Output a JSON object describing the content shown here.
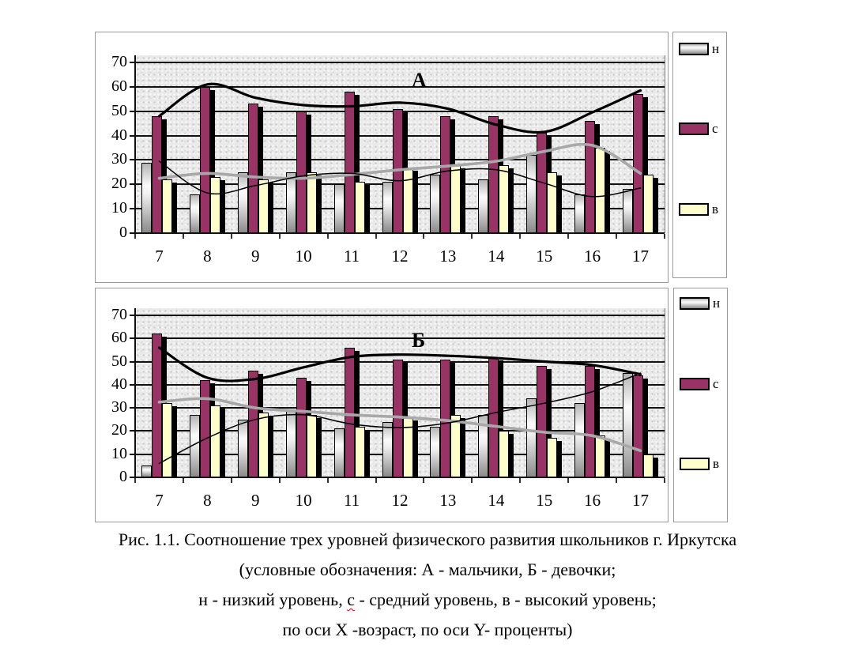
{
  "figure": {
    "type_note": "grouped bar charts with smoothed trend lines, Excel style"
  },
  "chart_data": [
    {
      "type": "bar",
      "label": "А",
      "categories": [
        7,
        8,
        9,
        10,
        11,
        12,
        13,
        14,
        15,
        16,
        17
      ],
      "series": [
        {
          "name": "н",
          "values": [
            29,
            16,
            25,
            25,
            20,
            21,
            24,
            22,
            32,
            16,
            18
          ]
        },
        {
          "name": "с",
          "values": [
            48,
            60,
            53,
            50,
            58,
            51,
            48,
            48,
            41,
            46,
            57
          ]
        },
        {
          "name": "в",
          "values": [
            22,
            23,
            22,
            25,
            21,
            27,
            28,
            28,
            25,
            35,
            24
          ]
        }
      ],
      "trend_lines": [
        {
          "series": "в",
          "style": "thick-gray",
          "values": [
            22.5,
            24.5,
            23,
            22.5,
            24,
            26,
            27.5,
            29.5,
            33.5,
            36,
            24.5
          ]
        },
        {
          "series": "с",
          "style": "thick-black",
          "values": [
            48,
            61,
            55.5,
            52.5,
            52,
            53.5,
            51,
            44.5,
            41.5,
            49.5,
            58.5
          ]
        },
        {
          "series": "н",
          "style": "thin-black",
          "values": [
            29.5,
            16.5,
            19.5,
            23.5,
            24.5,
            21.5,
            25.5,
            26,
            20.5,
            15,
            18.5
          ]
        }
      ],
      "ylim": [
        0,
        70
      ],
      "yticks": [
        0,
        10,
        20,
        30,
        40,
        50,
        60,
        70
      ],
      "grid": true,
      "legend_position": "right"
    },
    {
      "type": "bar",
      "label": "Б",
      "categories": [
        7,
        8,
        9,
        10,
        11,
        12,
        13,
        14,
        15,
        16,
        17
      ],
      "series": [
        {
          "name": "н",
          "values": [
            5,
            27,
            25,
            29,
            21,
            24,
            22,
            27,
            34,
            32,
            45
          ]
        },
        {
          "name": "с",
          "values": [
            62,
            42,
            46,
            43,
            56,
            51,
            51,
            52,
            48,
            48,
            44
          ]
        },
        {
          "name": "в",
          "values": [
            32,
            31,
            28,
            27,
            22,
            26,
            27,
            20,
            17,
            18,
            10
          ]
        }
      ],
      "trend_lines": [
        {
          "series": "в",
          "style": "thick-gray",
          "values": [
            32.5,
            34,
            30,
            28.5,
            27,
            26,
            24.5,
            22,
            19.5,
            18,
            11.5
          ]
        },
        {
          "series": "с",
          "style": "thick-black",
          "values": [
            56,
            43,
            42.5,
            47.5,
            52,
            53,
            52.5,
            51.5,
            50,
            48.5,
            44.5
          ]
        },
        {
          "series": "н",
          "style": "thin-black",
          "values": [
            6,
            17,
            25,
            27,
            23,
            21.5,
            23.5,
            28,
            32,
            37,
            45
          ]
        }
      ],
      "ylim": [
        0,
        70
      ],
      "yticks": [
        0,
        10,
        20,
        30,
        40,
        50,
        60,
        70
      ],
      "grid": true,
      "legend_position": "right"
    }
  ],
  "colors": {
    "series_n": "silver-gradient",
    "series_s": "#993366",
    "series_v": "#FFFFCC",
    "trend_gray": "#a8a8a8",
    "trend_black": "#000000",
    "plot_background": "#e9e9e9",
    "squiggle": "#cc0000"
  },
  "caption": {
    "line1": "Рис. 1.1. Соотношение трех уровней физического развития школьников г. Иркутска",
    "line2": "(условные обозначения:  А - мальчики, Б - девочки;",
    "line3_part1": "н -  низкий уровень, ",
    "line3_misspelled": "с",
    "line3_part2": " - средний уровень, в - высокий уровень;",
    "line4": "по оси Х -возраст, по оси Y- проценты)"
  }
}
